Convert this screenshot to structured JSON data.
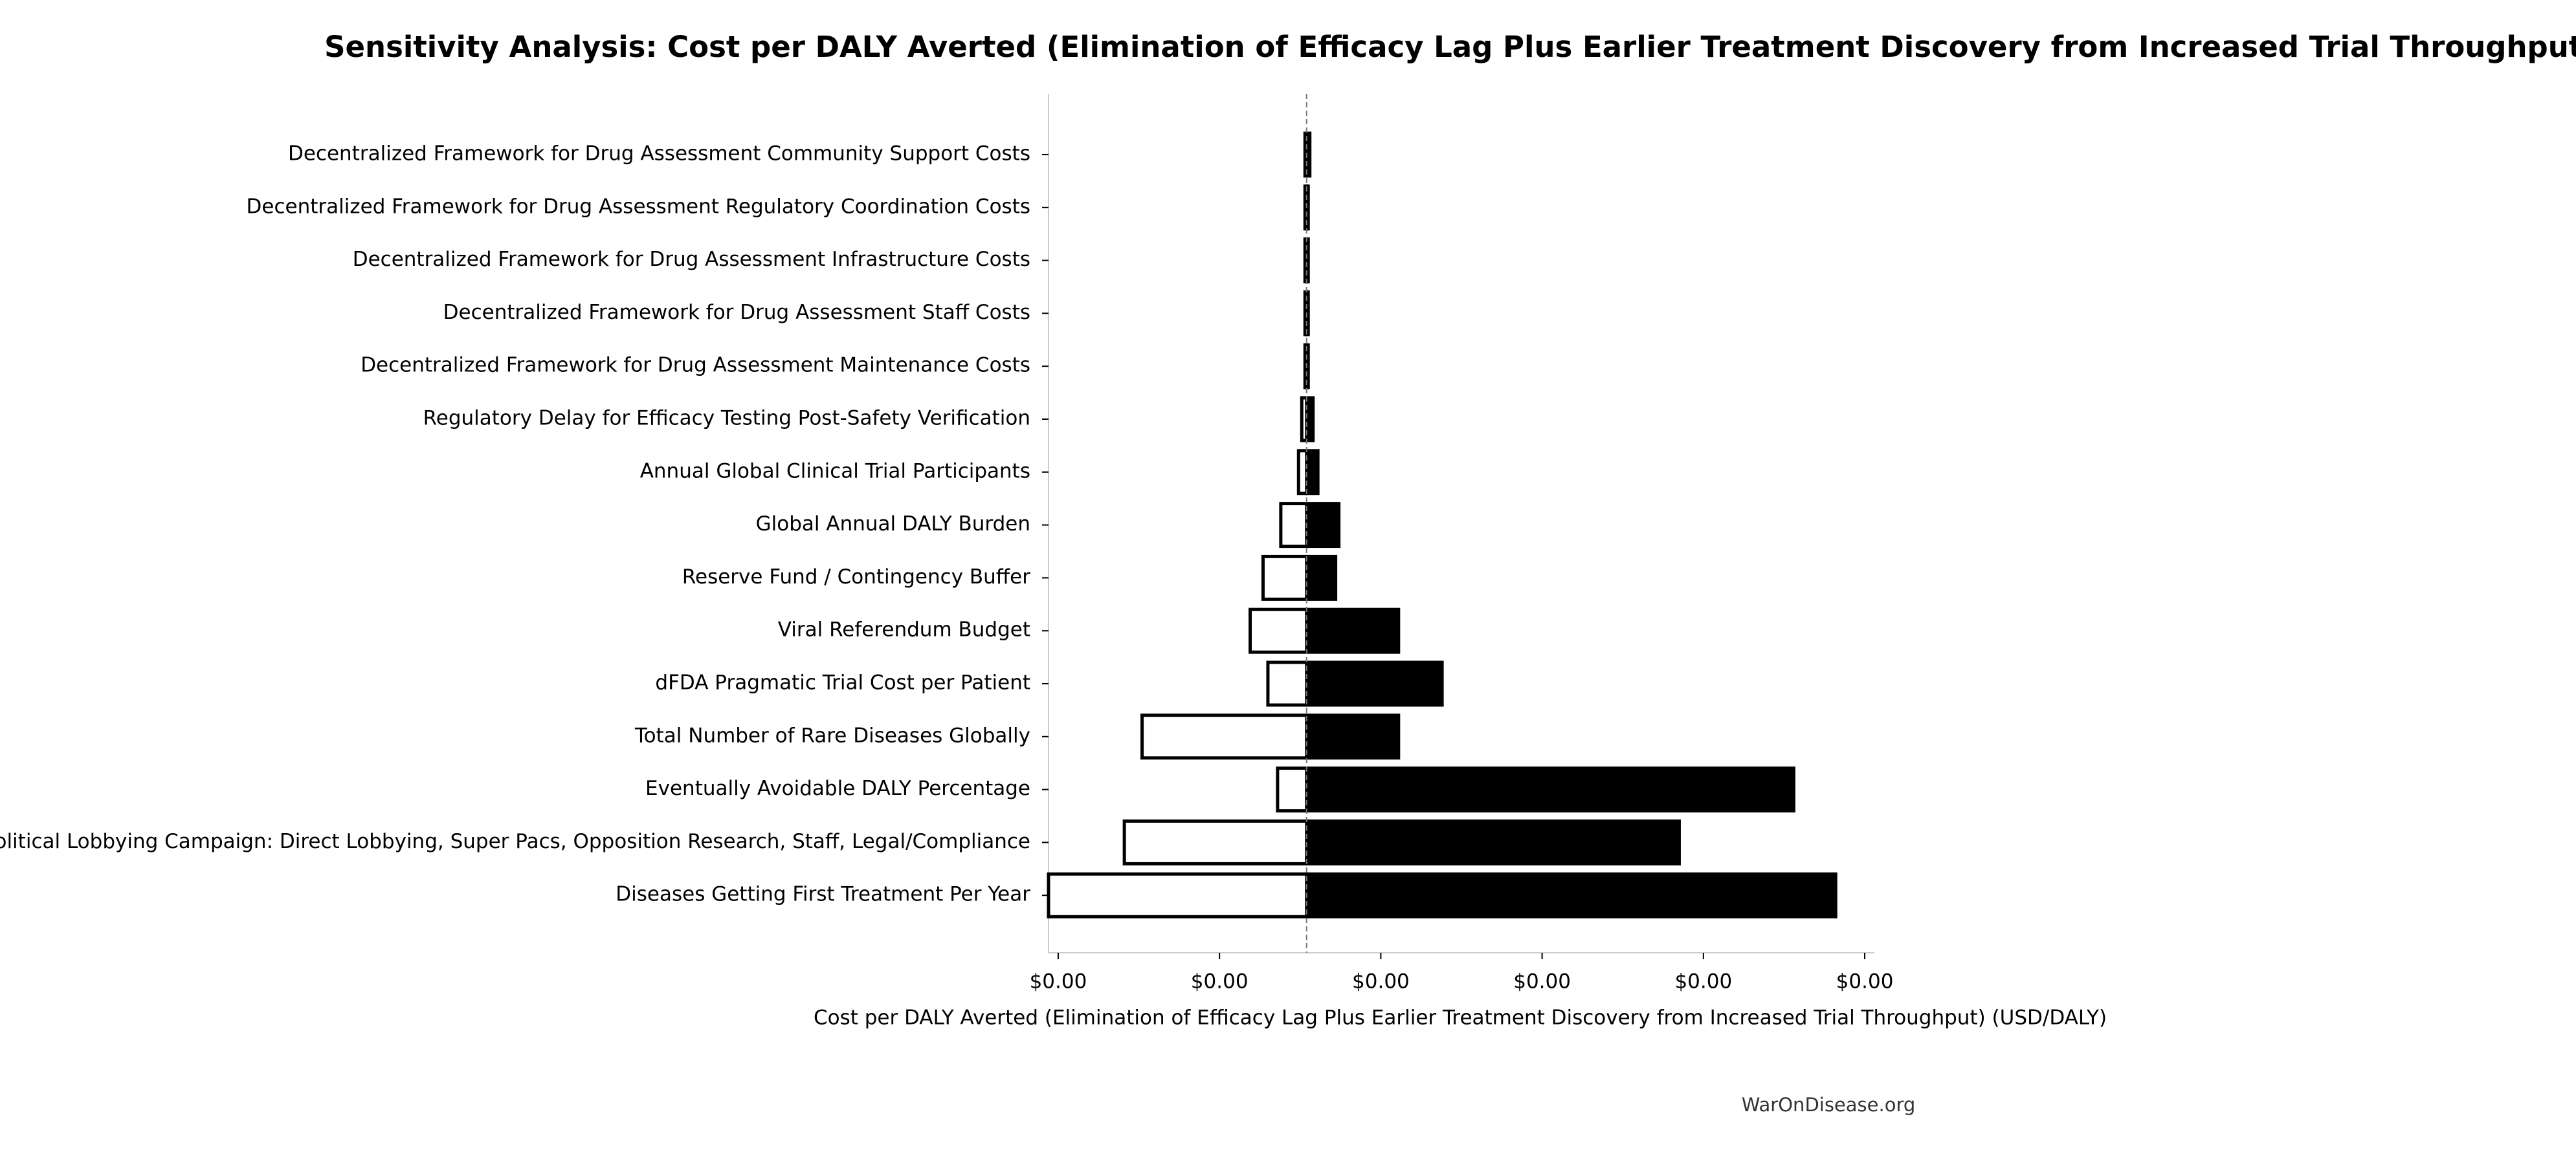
{
  "chart_data": {
    "type": "tornado",
    "title": "Sensitivity Analysis: Cost per DALY Averted (Elimination of Efficacy Lag Plus Earlier Treatment Discovery from Increased Trial Throughput)",
    "x_label": "Cost per DALY Averted (Elimination of Efficacy Lag Plus Earlier Treatment Discovery from Increased Trial Throughput) (USD/DALY)",
    "source": "WarOnDisease.org",
    "categories": [
      "Decentralized Framework for Drug Assessment Community Support Costs",
      "Decentralized Framework for Drug Assessment Regulatory Coordination Costs",
      "Decentralized Framework for Drug Assessment Infrastructure Costs",
      "Decentralized Framework for Drug Assessment Staff Costs",
      "Decentralized Framework for Drug Assessment Maintenance Costs",
      "Regulatory Delay for Efficacy Testing Post-Safety Verification",
      "Annual Global Clinical Trial Participants",
      "Global Annual DALY Burden",
      "Reserve Fund / Contingency Buffer",
      "Viral Referendum Budget",
      "dFDA Pragmatic Trial Cost per Patient",
      "Total Number of Rare Diseases Globally",
      "Eventually Avoidable DALY Percentage",
      "Political Lobbying Campaign: Direct Lobbying, Super Pacs, Opposition Research, Staff, Legal/Compliance",
      "Diseases Getting First Treatment Per Year"
    ],
    "baseline": 0.00154,
    "low_values": [
      0.00153,
      0.00153,
      0.00153,
      0.00153,
      0.00153,
      0.00151,
      0.00149,
      0.00138,
      0.00127,
      0.00119,
      0.0013,
      0.00052,
      0.00136,
      0.00041,
      -6e-05
    ],
    "high_values": [
      0.00156,
      0.00155,
      0.00155,
      0.00155,
      0.00155,
      0.00158,
      0.00161,
      0.00174,
      0.00172,
      0.00211,
      0.00238,
      0.00211,
      0.00456,
      0.00385,
      0.00482
    ],
    "low_color": "#ffffff",
    "high_color": "#000000",
    "xlim": [
      -6e-05,
      0.00506
    ],
    "xticks": [
      {
        "value": 0,
        "label": "$0.00"
      },
      {
        "value": 0.001,
        "label": "$0.00"
      },
      {
        "value": 0.002,
        "label": "$0.00"
      },
      {
        "value": 0.003,
        "label": "$0.00"
      },
      {
        "value": 0.004,
        "label": "$0.00"
      },
      {
        "value": 0.005,
        "label": "$0.00"
      }
    ]
  }
}
